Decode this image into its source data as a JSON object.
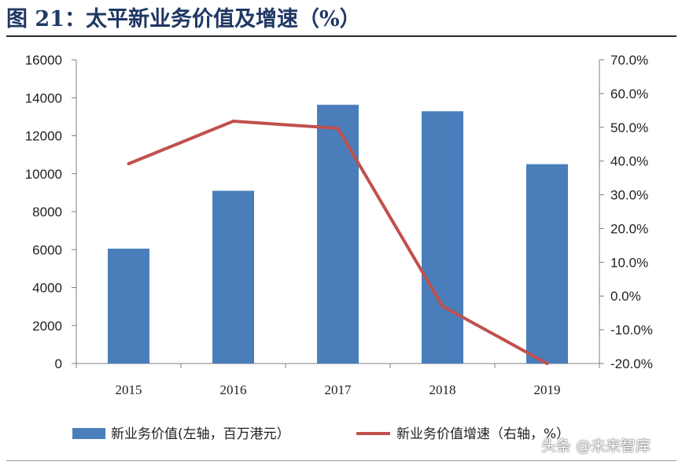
{
  "title": "图 21：太平新业务价值及增速（%）",
  "watermark": "头条 @未来智库",
  "chart_data": {
    "type": "bar+line",
    "categories": [
      "2015",
      "2016",
      "2017",
      "2018",
      "2019"
    ],
    "series": [
      {
        "name": "新业务价值(左轴，百万港元）",
        "type": "bar",
        "axis": "left",
        "values": [
          6050,
          9100,
          13630,
          13290,
          10500
        ],
        "color": "#4a7ebb"
      },
      {
        "name": "新业务价值增速（右轴，%）",
        "type": "line",
        "axis": "right",
        "values": [
          39.2,
          51.8,
          49.7,
          -3.0,
          -20.0
        ],
        "color": "#c0504d"
      }
    ],
    "y_left": {
      "min": 0,
      "max": 16000,
      "step": 2000,
      "ticks": [
        "0",
        "2000",
        "4000",
        "6000",
        "8000",
        "10000",
        "12000",
        "14000",
        "16000"
      ]
    },
    "y_right": {
      "min": -20,
      "max": 70,
      "step": 10,
      "ticks": [
        "-20.0%",
        "-10.0%",
        "0.0%",
        "10.0%",
        "20.0%",
        "30.0%",
        "40.0%",
        "50.0%",
        "60.0%",
        "70.0%"
      ]
    },
    "grid": false,
    "legend_position": "bottom"
  }
}
